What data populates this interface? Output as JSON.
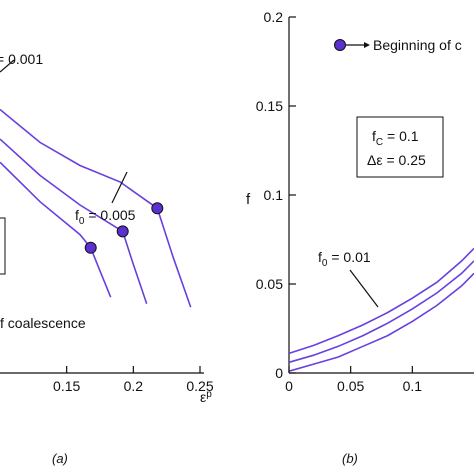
{
  "chart_data": [
    {
      "panel": "(a)",
      "type": "line",
      "xlabel": "ε",
      "xlabel_sup": "p",
      "ylabel": "",
      "xlim": [
        0.1,
        0.25
      ],
      "x_ticks": [
        "0.15",
        "0.2",
        "0.25"
      ],
      "marker_color": "#5b2fd0",
      "line_color": "#6a3fe0",
      "annotations": {
        "top_label": "= 0.001",
        "bottom_label_prefix": "f",
        "bottom_label_sub": "0",
        "bottom_label_suffix": " = 0.005",
        "legend_fragment": "f coalescence"
      },
      "series": [
        {
          "x": [
            0.1,
            0.13,
            0.16,
            0.19,
            0.218,
            0.23,
            0.243
          ],
          "y": [
            0.13,
            0.12,
            0.113,
            0.108,
            0.1,
            0.085,
            0.07
          ]
        },
        {
          "x": [
            0.1,
            0.13,
            0.16,
            0.192,
            0.2,
            0.21
          ],
          "y": [
            0.121,
            0.11,
            0.101,
            0.093,
            0.083,
            0.071
          ]
        },
        {
          "x": [
            0.1,
            0.13,
            0.16,
            0.168,
            0.175,
            0.183
          ],
          "y": [
            0.114,
            0.102,
            0.092,
            0.088,
            0.081,
            0.073
          ]
        }
      ],
      "coalescence_points": [
        {
          "x": 0.218,
          "y": 0.1
        },
        {
          "x": 0.192,
          "y": 0.093
        },
        {
          "x": 0.168,
          "y": 0.088
        }
      ]
    },
    {
      "panel": "(b)",
      "type": "line",
      "xlabel": "",
      "ylabel": "f",
      "xlim": [
        0,
        0.15
      ],
      "ylim": [
        0,
        0.2
      ],
      "x_ticks": [
        "0",
        "0.05",
        "0.1"
      ],
      "y_ticks": [
        "0",
        "0.05",
        "0.1",
        "0.15",
        "0.2"
      ],
      "legend": "Beginning of c",
      "params": {
        "fc_main": "f",
        "fc_sub": "C",
        "fc_value": " = 0.1",
        "de_text": "Δε = 0.25"
      },
      "curve_label_prefix": "f",
      "curve_label_sub": "0",
      "curve_label_suffix": " = 0.01",
      "series": [
        {
          "x": [
            0,
            0.02,
            0.04,
            0.06,
            0.08,
            0.1,
            0.12,
            0.14,
            0.15
          ],
          "y": [
            0.011,
            0.0155,
            0.021,
            0.027,
            0.034,
            0.042,
            0.051,
            0.063,
            0.07
          ]
        },
        {
          "x": [
            0,
            0.02,
            0.04,
            0.06,
            0.08,
            0.1,
            0.12,
            0.14,
            0.15
          ],
          "y": [
            0.006,
            0.01,
            0.015,
            0.021,
            0.028,
            0.036,
            0.045,
            0.056,
            0.063
          ]
        },
        {
          "x": [
            0,
            0.02,
            0.04,
            0.06,
            0.08,
            0.1,
            0.12,
            0.14,
            0.15
          ],
          "y": [
            0.001,
            0.005,
            0.009,
            0.015,
            0.021,
            0.029,
            0.038,
            0.049,
            0.056
          ]
        }
      ]
    }
  ],
  "captions": {
    "a": "(a)",
    "b": "(b)"
  }
}
